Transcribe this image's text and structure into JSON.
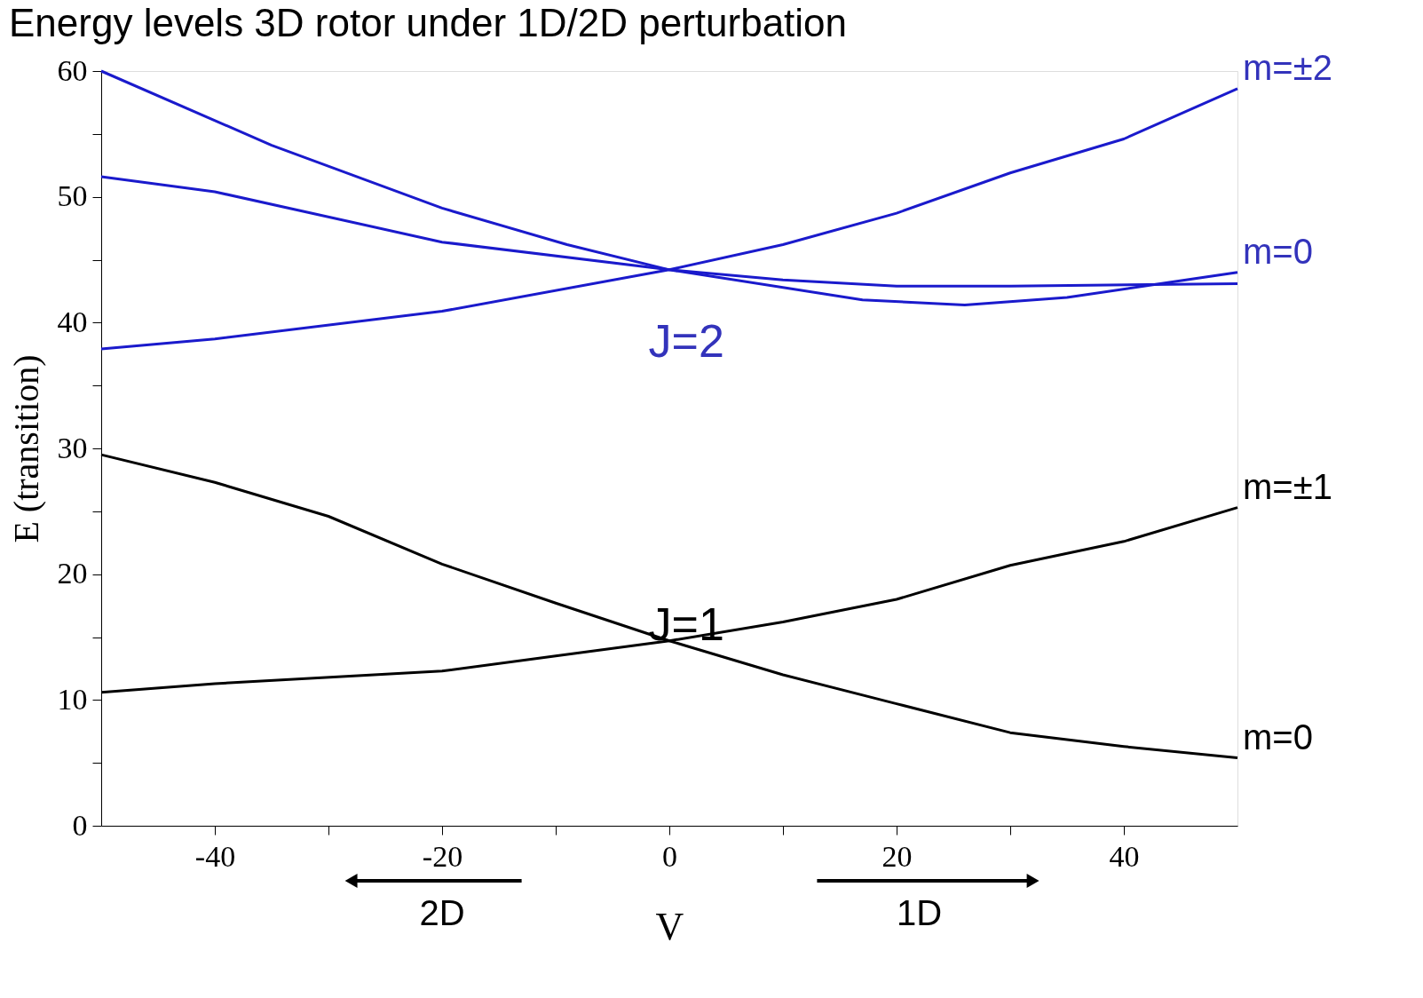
{
  "chart_data": {
    "type": "line",
    "title": "Energy levels 3D rotor under 1D/2D perturbation",
    "xlabel": "V",
    "ylabel": "E (transition)",
    "xlim": [
      -50,
      50
    ],
    "ylim": [
      0,
      60
    ],
    "xticks": [
      -40,
      {
        "value": -30,
        "label": null
      },
      -20,
      {
        "value": -10,
        "label": null
      },
      0,
      {
        "value": 10,
        "label": null
      },
      20,
      {
        "value": 30,
        "label": null
      },
      40
    ],
    "yticks": [
      0,
      {
        "value": 5,
        "label": null
      },
      10,
      {
        "value": 15,
        "label": null
      },
      20,
      {
        "value": 25,
        "label": null
      },
      30,
      {
        "value": 35,
        "label": null
      },
      40,
      {
        "value": 45,
        "label": null
      },
      50,
      {
        "value": 55,
        "label": null
      },
      60
    ],
    "grid": false,
    "marker": "none",
    "line_style": "solid",
    "series": [
      {
        "color": "#1a1acc",
        "x": [
          -50,
          -35,
          -20,
          -9,
          0,
          17,
          26,
          35,
          44,
          50
        ],
        "values": [
          60,
          54.1,
          49.1,
          46.2,
          44.2,
          41.8,
          41.4,
          42.0,
          43.2,
          44.0
        ]
      },
      {
        "color": "#1a1acc",
        "x": [
          -50,
          -40,
          -20,
          0,
          10,
          20,
          30,
          40,
          50
        ],
        "values": [
          37.9,
          38.7,
          40.9,
          44.2,
          46.2,
          48.7,
          51.9,
          54.6,
          58.6
        ]
      },
      {
        "color": "#1a1acc",
        "x": [
          -50,
          -40,
          -20,
          0,
          10,
          20,
          30,
          50
        ],
        "values": [
          51.6,
          50.4,
          46.4,
          44.2,
          43.4,
          42.9,
          42.9,
          43.1
        ]
      },
      {
        "color": "#000000",
        "x": [
          -50,
          -40,
          -30,
          -20,
          -10,
          0,
          10,
          20,
          30,
          40,
          50
        ],
        "values": [
          29.5,
          27.3,
          24.6,
          20.8,
          17.7,
          14.7,
          12.0,
          9.7,
          7.4,
          6.3,
          5.4
        ]
      },
      {
        "color": "#000000",
        "x": [
          -50,
          -40,
          -20,
          -10,
          0,
          10,
          20,
          30,
          40,
          50
        ],
        "values": [
          10.6,
          11.3,
          12.3,
          13.5,
          14.7,
          16.2,
          18.0,
          20.7,
          22.6,
          25.3
        ]
      }
    ],
    "annotations": [
      "m=±2",
      "m=0",
      "J=2",
      "m=±1",
      "m=0",
      "J=1",
      "2D",
      "1D"
    ]
  }
}
